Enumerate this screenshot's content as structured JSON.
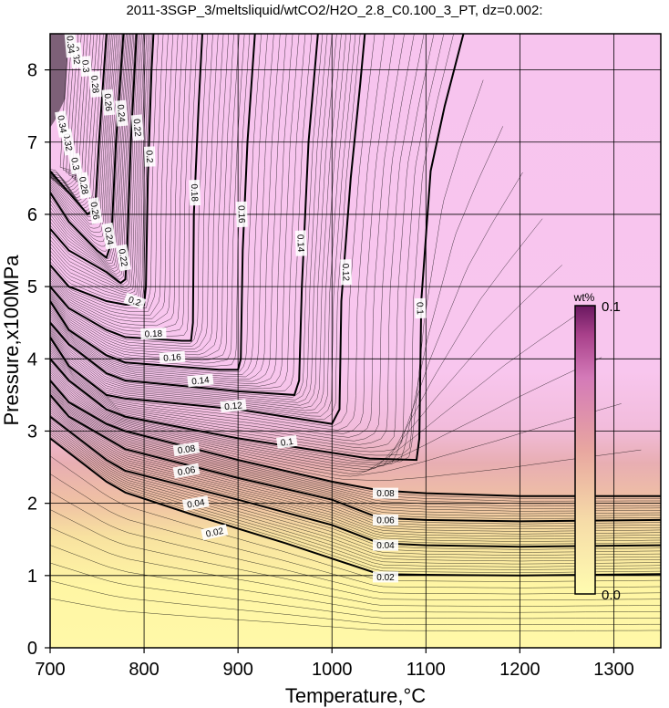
{
  "chart_data": {
    "type": "contour",
    "title": "2011-3SGP_3/meltsliquid/wtCO2/H2O_2.8_C0.100_3_PT, dz=0.002:",
    "xlabel": "Temperature,°C",
    "ylabel": "Pressure,x100MPa",
    "xlim": [
      700,
      1350
    ],
    "ylim": [
      0,
      8.5
    ],
    "x_ticks": [
      700,
      800,
      900,
      1000,
      1100,
      1200,
      1300
    ],
    "y_ticks": [
      0,
      1,
      2,
      3,
      4,
      5,
      6,
      7,
      8
    ],
    "grid": true,
    "contour_interval": 0.002,
    "colorbar": {
      "unit": "wt%",
      "min_label": "0.0",
      "max_label": "0.1",
      "min": 0.0,
      "max": 0.1
    },
    "colors": {
      "low": "#fff6a8",
      "mid": "#e8a6a0",
      "high": "#f8c6ee",
      "outside": "#ffffff"
    },
    "major_contours": [
      {
        "level": 0.02,
        "label": "0.02",
        "points": [
          [
            700,
            2.9
          ],
          [
            720,
            2.7
          ],
          [
            760,
            2.3
          ],
          [
            780,
            2.15
          ],
          [
            850,
            1.85
          ],
          [
            950,
            1.45
          ],
          [
            1050,
            1.02
          ],
          [
            1100,
            1.01
          ],
          [
            1200,
            1.0
          ],
          [
            1350,
            1.02
          ]
        ]
      },
      {
        "level": 0.04,
        "label": "0.04",
        "points": [
          [
            700,
            3.2
          ],
          [
            720,
            3.0
          ],
          [
            760,
            2.6
          ],
          [
            780,
            2.45
          ],
          [
            900,
            2.05
          ],
          [
            1000,
            1.7
          ],
          [
            1050,
            1.45
          ],
          [
            1100,
            1.42
          ],
          [
            1200,
            1.4
          ],
          [
            1350,
            1.42
          ]
        ]
      },
      {
        "level": 0.06,
        "label": "0.06",
        "points": [
          [
            700,
            3.5
          ],
          [
            720,
            3.2
          ],
          [
            760,
            2.9
          ],
          [
            780,
            2.75
          ],
          [
            900,
            2.35
          ],
          [
            1000,
            2.05
          ],
          [
            1050,
            1.8
          ],
          [
            1100,
            1.77
          ],
          [
            1200,
            1.75
          ],
          [
            1350,
            1.77
          ]
        ]
      },
      {
        "level": 0.08,
        "label": "0.08",
        "points": [
          [
            700,
            3.7
          ],
          [
            720,
            3.4
          ],
          [
            760,
            3.1
          ],
          [
            780,
            3.0
          ],
          [
            900,
            2.6
          ],
          [
            1000,
            2.3
          ],
          [
            1050,
            2.18
          ],
          [
            1100,
            2.14
          ],
          [
            1200,
            2.1
          ],
          [
            1350,
            2.1
          ]
        ]
      },
      {
        "level": 0.1,
        "label": "0.1",
        "points": [
          [
            700,
            4.0
          ],
          [
            720,
            3.7
          ],
          [
            760,
            3.3
          ],
          [
            780,
            3.2
          ],
          [
            900,
            2.9
          ],
          [
            1040,
            2.62
          ],
          [
            1090,
            2.6
          ],
          [
            1093,
            2.9
          ],
          [
            1095,
            4.8
          ],
          [
            1105,
            6.6
          ],
          [
            1120,
            7.5
          ],
          [
            1140,
            8.5
          ]
        ]
      },
      {
        "level": 0.12,
        "label": "0.12",
        "points": [
          [
            700,
            4.3
          ],
          [
            720,
            3.9
          ],
          [
            760,
            3.5
          ],
          [
            780,
            3.45
          ],
          [
            900,
            3.3
          ],
          [
            1000,
            3.1
          ],
          [
            1008,
            3.3
          ],
          [
            1010,
            4.8
          ],
          [
            1020,
            6.5
          ],
          [
            1030,
            7.8
          ],
          [
            1035,
            8.5
          ]
        ]
      },
      {
        "level": 0.14,
        "label": "0.14",
        "points": [
          [
            700,
            4.5
          ],
          [
            720,
            4.2
          ],
          [
            760,
            3.8
          ],
          [
            780,
            3.7
          ],
          [
            900,
            3.55
          ],
          [
            960,
            3.5
          ],
          [
            965,
            3.7
          ],
          [
            968,
            5.0
          ],
          [
            975,
            7.0
          ],
          [
            985,
            8.5
          ]
        ]
      },
      {
        "level": 0.16,
        "label": "0.16",
        "points": [
          [
            700,
            4.8
          ],
          [
            720,
            4.4
          ],
          [
            760,
            4.05
          ],
          [
            780,
            3.95
          ],
          [
            880,
            3.85
          ],
          [
            900,
            3.85
          ],
          [
            903,
            4.0
          ],
          [
            905,
            5.5
          ],
          [
            910,
            7.0
          ],
          [
            918,
            8.5
          ]
        ]
      },
      {
        "level": 0.18,
        "label": "0.18",
        "points": [
          [
            700,
            5.0
          ],
          [
            720,
            4.7
          ],
          [
            760,
            4.4
          ],
          [
            780,
            4.3
          ],
          [
            840,
            4.25
          ],
          [
            850,
            4.25
          ],
          [
            852,
            4.5
          ],
          [
            853,
            6.0
          ],
          [
            858,
            7.5
          ],
          [
            862,
            8.5
          ]
        ]
      },
      {
        "level": 0.2,
        "label": "0.2",
        "points": [
          [
            700,
            5.3
          ],
          [
            720,
            5.0
          ],
          [
            760,
            4.8
          ],
          [
            780,
            4.75
          ],
          [
            800,
            4.75
          ],
          [
            802,
            5.0
          ],
          [
            804,
            6.5
          ],
          [
            808,
            8.0
          ],
          [
            810,
            8.5
          ]
        ]
      },
      {
        "level": 0.22,
        "label": "0.22",
        "points": [
          [
            700,
            5.8
          ],
          [
            720,
            5.5
          ],
          [
            760,
            5.2
          ],
          [
            775,
            5.05
          ],
          [
            780,
            5.1
          ],
          [
            782,
            5.5
          ],
          [
            786,
            7.0
          ],
          [
            792,
            8.5
          ]
        ]
      },
      {
        "level": 0.24,
        "label": "0.24",
        "points": [
          [
            700,
            6.3
          ],
          [
            720,
            5.9
          ],
          [
            750,
            5.5
          ],
          [
            760,
            5.4
          ],
          [
            765,
            5.6
          ],
          [
            770,
            7.0
          ],
          [
            778,
            8.5
          ]
        ]
      },
      {
        "level": 0.26,
        "label": "0.26",
        "points": [
          [
            700,
            6.6
          ],
          [
            720,
            6.3
          ],
          [
            740,
            6.0
          ],
          [
            748,
            6.1
          ],
          [
            752,
            7.0
          ],
          [
            760,
            8.5
          ]
        ]
      }
    ],
    "contour_labels": [
      {
        "text": "0.02",
        "x": 1057,
        "y": 0.98,
        "angle": 0
      },
      {
        "text": "0.02",
        "x": 875,
        "y": 1.6,
        "angle": 12
      },
      {
        "text": "0.04",
        "x": 1057,
        "y": 1.42,
        "angle": 0
      },
      {
        "text": "0.04",
        "x": 855,
        "y": 2.0,
        "angle": 10
      },
      {
        "text": "0.06",
        "x": 1057,
        "y": 1.77,
        "angle": 0
      },
      {
        "text": "0.06",
        "x": 845,
        "y": 2.45,
        "angle": 10
      },
      {
        "text": "0.08",
        "x": 1057,
        "y": 2.14,
        "angle": 0
      },
      {
        "text": "0.08",
        "x": 845,
        "y": 2.75,
        "angle": 8
      },
      {
        "text": "0.1",
        "x": 952,
        "y": 2.85,
        "angle": 8
      },
      {
        "text": "0.1",
        "x": 1094,
        "y": 4.7,
        "angle": -88
      },
      {
        "text": "0.12",
        "x": 895,
        "y": 3.35,
        "angle": 6
      },
      {
        "text": "0.12",
        "x": 1015,
        "y": 5.2,
        "angle": -88
      },
      {
        "text": "0.14",
        "x": 860,
        "y": 3.7,
        "angle": 6
      },
      {
        "text": "0.14",
        "x": 967,
        "y": 5.6,
        "angle": -88
      },
      {
        "text": "0.16",
        "x": 830,
        "y": 4.02,
        "angle": 4
      },
      {
        "text": "0.16",
        "x": 904,
        "y": 6.0,
        "angle": -88
      },
      {
        "text": "0.18",
        "x": 810,
        "y": 4.35,
        "angle": 2
      },
      {
        "text": "0.18",
        "x": 854,
        "y": 6.3,
        "angle": -88
      },
      {
        "text": "0.2",
        "x": 790,
        "y": 4.8,
        "angle": -20
      },
      {
        "text": "0.2",
        "x": 806,
        "y": 6.8,
        "angle": -88
      },
      {
        "text": "0.22",
        "x": 778,
        "y": 5.4,
        "angle": -80
      },
      {
        "text": "0.22",
        "x": 793,
        "y": 7.2,
        "angle": -85
      },
      {
        "text": "0.24",
        "x": 763,
        "y": 5.7,
        "angle": -80
      },
      {
        "text": "0.24",
        "x": 776,
        "y": 7.4,
        "angle": -85
      },
      {
        "text": "0.26",
        "x": 748,
        "y": 6.05,
        "angle": -80
      },
      {
        "text": "0.26",
        "x": 762,
        "y": 7.55,
        "angle": -85
      },
      {
        "text": "0.28",
        "x": 736,
        "y": 6.4,
        "angle": -80
      },
      {
        "text": "0.28",
        "x": 748,
        "y": 7.8,
        "angle": -85
      },
      {
        "text": "0.3",
        "x": 727,
        "y": 6.7,
        "angle": -80
      },
      {
        "text": "0.3",
        "x": 738,
        "y": 8.05,
        "angle": -85
      },
      {
        "text": "0.32",
        "x": 719,
        "y": 7.0,
        "angle": -80
      },
      {
        "text": "0.32",
        "x": 728,
        "y": 8.2,
        "angle": -85
      },
      {
        "text": "0.34",
        "x": 713,
        "y": 7.25,
        "angle": -80
      },
      {
        "text": "0.34",
        "x": 722,
        "y": 8.35,
        "angle": -85
      }
    ]
  }
}
